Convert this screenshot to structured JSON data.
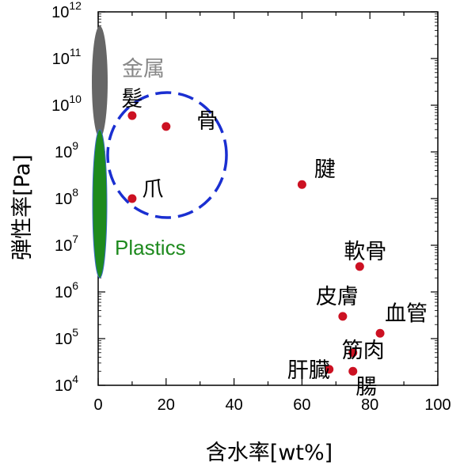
{
  "chart_data": {
    "type": "scatter",
    "xlabel": "含水率[wt%]",
    "ylabel": "弾性率[Pa]",
    "xlim": [
      0,
      100
    ],
    "ylim": [
      10000,
      1000000000000
    ],
    "y_scale": "log",
    "grid": false,
    "x_ticks": [
      0,
      20,
      40,
      60,
      80,
      100
    ],
    "y_tick_exponents": [
      4,
      5,
      6,
      7,
      8,
      9,
      10,
      11,
      12
    ],
    "points": [
      {
        "label": "髪",
        "x": 10,
        "y": 6000000000
      },
      {
        "label": "骨",
        "x": 20,
        "y": 3500000000
      },
      {
        "label": "爪",
        "x": 10,
        "y": 100000000
      },
      {
        "label": "腱",
        "x": 60,
        "y": 200000000
      },
      {
        "label": "軟骨",
        "x": 77,
        "y": 3500000
      },
      {
        "label": "皮膚",
        "x": 72,
        "y": 300000
      },
      {
        "label": "血管",
        "x": 83,
        "y": 130000
      },
      {
        "label": "筋肉",
        "x": 75,
        "y": 50000
      },
      {
        "label": "肝臓",
        "x": 68,
        "y": 22000
      },
      {
        "label": "腸",
        "x": 75,
        "y": 20000
      }
    ],
    "ranges": [
      {
        "label": "金属",
        "x": 0,
        "y_min": 2000000000,
        "y_max": 500000000000,
        "color": "#666666"
      },
      {
        "label": "Plastics",
        "x": 0,
        "y_min": 2000000,
        "y_max": 3000000000,
        "color": "#1e8a1e"
      }
    ],
    "highlight_group": [
      "髪",
      "骨",
      "爪"
    ],
    "colors": {
      "point": "#cc1122",
      "highlight": "#1a2fd1",
      "metal": "#666666",
      "plastics": "#1e8a1e",
      "plastics_text": "#1e8a1e",
      "metal_text": "#888888"
    }
  }
}
